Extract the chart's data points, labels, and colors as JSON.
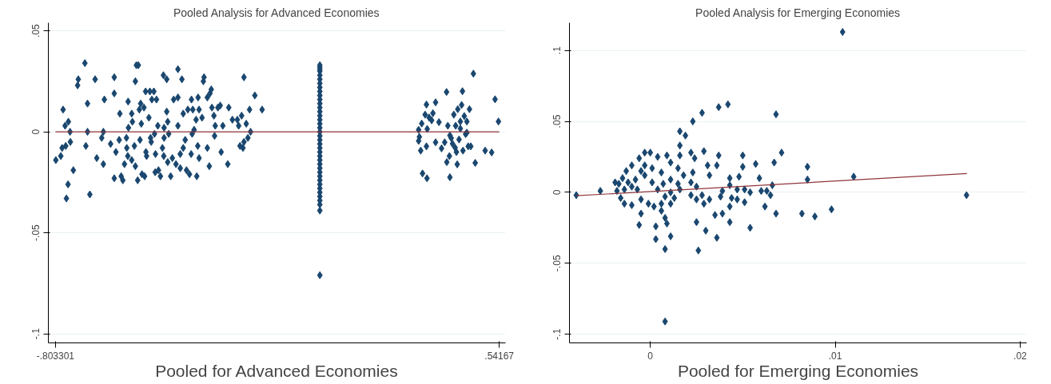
{
  "chart_data": [
    {
      "type": "scatter",
      "title": "Pooled Analysis for Advanced Economies",
      "xlabel": "Pooled for Advanced Economies",
      "xlim": [
        -0.8247,
        0.5606
      ],
      "ylim": [
        -0.1045,
        0.054
      ],
      "xticks": [
        {
          "value": -0.803301,
          "label": "-.803301"
        },
        {
          "value": 0.54167,
          "label": ".54167"
        }
      ],
      "yticks": [
        {
          "value": -0.1,
          "label": "-.1"
        },
        {
          "value": -0.05,
          "label": "-.05"
        },
        0,
        {
          "value": 0.05,
          "label": ".05"
        }
      ],
      "grid": "y",
      "series": [
        {
          "color": "#1a476f",
          "marker": "diamond",
          "x": [
            -0.802,
            -0.787,
            -0.78,
            -0.774,
            -0.764,
            -0.783,
            -0.772,
            -0.758,
            -0.759,
            -0.749,
            -0.765,
            -0.77,
            -0.736,
            -0.734,
            -0.714,
            -0.706,
            -0.706,
            -0.711,
            -0.699,
            -0.683,
            -0.678,
            -0.663,
            -0.658,
            -0.655,
            -0.658,
            -0.636,
            -0.625,
            -0.625,
            -0.625,
            -0.62,
            -0.61,
            -0.608,
            -0.604,
            -0.599,
            -0.594,
            -0.588,
            -0.587,
            -0.584,
            -0.583,
            -0.582,
            -0.572,
            -0.572,
            -0.57,
            -0.564,
            -0.561,
            -0.561,
            -0.558,
            -0.554,
            -0.552,
            -0.549,
            -0.547,
            -0.545,
            -0.543,
            -0.541,
            -0.535,
            -0.533,
            -0.53,
            -0.529,
            -0.527,
            -0.52,
            -0.517,
            -0.515,
            -0.513,
            -0.511,
            -0.505,
            -0.503,
            -0.501,
            -0.5,
            -0.497,
            -0.493,
            -0.491,
            -0.485,
            -0.479,
            -0.476,
            -0.474,
            -0.474,
            -0.475,
            -0.466,
            -0.466,
            -0.463,
            -0.463,
            -0.46,
            -0.454,
            -0.449,
            -0.445,
            -0.438,
            -0.432,
            -0.432,
            -0.432,
            -0.425,
            -0.425,
            -0.42,
            -0.416,
            -0.416,
            -0.41,
            -0.406,
            -0.402,
            -0.397,
            -0.392,
            -0.391,
            -0.389,
            -0.387,
            -0.383,
            -0.377,
            -0.375,
            -0.372,
            -0.371,
            -0.368,
            -0.368,
            -0.359,
            -0.355,
            -0.353,
            -0.343,
            -0.343,
            -0.337,
            -0.335,
            -0.331,
            -0.329,
            -0.323,
            -0.321,
            -0.319,
            -0.311,
            -0.304,
            -0.301,
            -0.296,
            -0.281,
            -0.278,
            -0.267,
            -0.252,
            -0.248,
            -0.244,
            -0.239,
            -0.235,
            -0.232,
            -0.232,
            -0.225,
            -0.22,
            -0.215,
            -0.212,
            -0.199,
            -0.177,
            -0.002,
            -0.002,
            -0.002,
            -0.002,
            -0.002,
            -0.002,
            -0.002,
            -0.002,
            -0.002,
            -0.002,
            -0.002,
            -0.002,
            -0.002,
            -0.002,
            -0.002,
            -0.002,
            -0.002,
            -0.002,
            -0.002,
            -0.002,
            -0.002,
            -0.002,
            -0.002,
            -0.002,
            -0.002,
            -0.002,
            -0.002,
            -0.002,
            -0.002,
            -0.002,
            -0.002,
            -0.002,
            -0.002,
            -0.002,
            -0.002,
            -0.002,
            -0.002,
            -0.002,
            -0.002,
            0.2973,
            0.2996,
            0.2973,
            0.3036,
            0.3067,
            0.3091,
            0.317,
            0.321,
            0.3226,
            0.3234,
            0.321,
            0.3289,
            0.3407,
            0.3487,
            0.3487,
            0.3589,
            0.3668,
            0.3763,
            0.3819,
            0.3827,
            0.3858,
            0.3906,
            0.3921,
            0.3961,
            0.404,
            0.408,
            0.4095,
            0.4143,
            0.4159,
            0.4198,
            0.4238,
            0.4277,
            0.4301,
            0.4317,
            0.4356,
            0.4396,
            0.4435,
            0.4475,
            0.4514,
            0.4554,
            0.4633,
            0.4688,
            0.4989,
            0.5186,
            0.5289,
            0.5392,
            0.4119,
            0.4238,
            0.4435,
            0.4,
            0.3921,
            0.3368
          ],
          "values": [
            -0.014,
            -0.012,
            0.011,
            0.003,
            0.005,
            -0.008,
            -0.007,
            -0.005,
            0.0,
            -0.019,
            -0.026,
            -0.033,
            0.023,
            0.026,
            0.034,
            0.014,
            0.0,
            -0.007,
            -0.031,
            0.026,
            -0.013,
            -0.003,
            0.0,
            0.016,
            -0.016,
            -0.006,
            0.027,
            0.019,
            -0.023,
            -0.01,
            -0.004,
            0.009,
            -0.022,
            -0.024,
            -0.016,
            -0.003,
            -0.008,
            -0.012,
            0.015,
            0.002,
            -0.014,
            0.009,
            0.005,
            -0.007,
            0.025,
            -0.017,
            0.033,
            -0.024,
            0.033,
            0.011,
            -0.004,
            0.014,
            0.004,
            -0.021,
            0.012,
            -0.022,
            0.02,
            -0.01,
            -0.012,
            0.007,
            0.02,
            -0.003,
            -0.005,
            0.016,
            0.02,
            -0.001,
            -0.02,
            -0.011,
            0.016,
            0.003,
            -0.019,
            -0.022,
            -0.008,
            0.028,
            0.002,
            -0.003,
            -0.012,
            0.026,
            0.01,
            0.005,
            -0.015,
            -0.001,
            -0.022,
            -0.013,
            0.016,
            -0.016,
            0.031,
            0.017,
            0.003,
            -0.018,
            -0.011,
            0.026,
            0.009,
            -0.008,
            -0.004,
            -0.019,
            0.011,
            -0.021,
            -0.011,
            0.016,
            -0.001,
            0.011,
            0.001,
            0.006,
            -0.022,
            -0.007,
            0.017,
            0.011,
            -0.013,
            0.007,
            0.025,
            0.027,
            0.017,
            -0.008,
            -0.017,
            0.019,
            0.021,
            0.012,
            0.008,
            -0.002,
            0.003,
            0.012,
            0.013,
            -0.01,
            0.003,
            -0.016,
            0.012,
            0.006,
            0.006,
            0.003,
            -0.007,
            0.008,
            -0.008,
            0.027,
            -0.005,
            0.004,
            -0.003,
            0.011,
            0.0,
            0.018,
            0.011,
            0.033,
            0.032,
            0.031,
            0.03,
            0.028,
            0.026,
            0.024,
            0.022,
            0.02,
            0.018,
            0.016,
            0.014,
            0.012,
            0.01,
            0.008,
            0.006,
            0.004,
            0.002,
            0.0,
            -0.002,
            -0.004,
            -0.006,
            -0.008,
            -0.01,
            -0.012,
            -0.014,
            -0.016,
            -0.018,
            -0.02,
            -0.022,
            -0.024,
            -0.026,
            -0.028,
            -0.03,
            -0.032,
            -0.034,
            -0.036,
            -0.039,
            -0.071,
            0.001,
            -0.0025,
            -0.0045,
            -0.0093,
            0.0041,
            -0.0206,
            0.0085,
            0.0135,
            -0.023,
            0.0014,
            -0.0072,
            0.0071,
            0.0092,
            0.0146,
            -0.0052,
            0.0048,
            -0.0082,
            -0.0052,
            0.0197,
            -0.015,
            0.003,
            -0.012,
            -0.0225,
            -0.0031,
            0.0085,
            -0.0079,
            0.003,
            -0.0161,
            0.0112,
            -0.0038,
            0.0016,
            0.0133,
            0.0201,
            -0.0093,
            0.0078,
            -0.0011,
            0.0051,
            -0.0072,
            0.0112,
            -0.0072,
            0.0288,
            -0.0154,
            -0.0093,
            -0.0102,
            0.0161,
            0.0051,
            -0.01,
            0.0051,
            -0.0004,
            -0.0059,
            -0.0018,
            0.0057
          ]
        },
        {
          "type": "line",
          "color": "#90353b",
          "x": [
            -0.803301,
            0.54167
          ],
          "values": [
            0,
            0
          ]
        }
      ]
    },
    {
      "type": "scatter",
      "title": "Pooled Analysis for Emerging Economies",
      "xlabel": "Pooled for Emerging Economies",
      "xlim": [
        -0.00437,
        0.02035
      ],
      "ylim": [
        -0.1061,
        0.1195
      ],
      "xticks": [
        0,
        {
          "value": 0.01,
          "label": ".01"
        },
        {
          "value": 0.02,
          "label": ".02"
        }
      ],
      "yticks": [
        {
          "value": -0.1,
          "label": "-.1"
        },
        {
          "value": -0.05,
          "label": "-.05"
        },
        0,
        {
          "value": 0.05,
          "label": ".05"
        },
        {
          "value": 0.1,
          "label": ".1"
        }
      ],
      "grid": "y",
      "series": [
        {
          "color": "#1a476f",
          "marker": "diamond",
          "x": [
            -0.004,
            -0.0027,
            0.0104,
            0.0171,
            0.0008,
            0.011,
            0.0098,
            0.0089,
            0.0082,
            0.0068,
            0.0085,
            0.0085,
            0.0071,
            0.0068,
            0.0067,
            0.0066,
            0.0065,
            0.0063,
            0.006,
            0.0062,
            0.0059,
            0.0057,
            0.0054,
            0.0054,
            0.0051,
            0.0051,
            0.005,
            0.005,
            0.0048,
            0.0047,
            0.0044,
            0.0043,
            0.0043,
            0.0043,
            0.0039,
            0.0037,
            0.0037,
            0.0042,
            0.0036,
            0.0036,
            0.0035,
            0.0032,
            0.0031,
            0.003,
            0.0029,
            0.0028,
            0.0026,
            0.0025,
            0.0024,
            0.0023,
            0.0023,
            0.0022,
            0.0019,
            0.0016,
            0.0016,
            0.0016,
            0.0011,
            0.0008,
            0.0003,
            0.0009,
            0.0008,
            0.0011,
            -0.0006,
            -0.0005,
            -0.001,
            -0.0014,
            -0.0016,
            -0.0018,
            -0.0015,
            -0.0013,
            -0.001,
            -0.0006,
            -0.0003,
            0.0,
            0.0004,
            0.0009,
            0.0011,
            0.0015,
            0.0018,
            0.0022,
            0.0025,
            0.0028,
            -0.0003,
            0.0001,
            0.0004,
            0.0008,
            -0.0007,
            -0.001,
            -0.0012,
            -0.0005,
            -0.0001,
            0.0002,
            0.0006,
            0.0011,
            0.0016,
            0.0022,
            0.0029,
            0.0032,
            0.0038,
            0.0001,
            0.0006,
            0.0011,
            0.0015,
            -0.0008,
            -0.0003,
            -0.0014,
            -0.0017,
            0.0003,
            0.0006,
            0.0013,
            0.0025,
            0.0039,
            0.0043,
            0.0047,
            -0.0019,
            -0.0005,
            0.0007
          ],
          "values": [
            -0.002,
            0.001,
            0.113,
            -0.002,
            -0.091,
            0.011,
            -0.012,
            -0.017,
            -0.015,
            -0.015,
            0.018,
            0.009,
            0.028,
            0.055,
            0.021,
            0.005,
            -0.002,
            0.001,
            0.001,
            -0.01,
            0.01,
            0.02,
            0.0,
            -0.025,
            0.002,
            -0.007,
            0.026,
            0.018,
            0.011,
            0.002,
            -0.004,
            0.01,
            -0.01,
            -0.021,
            -0.015,
            0.026,
            0.06,
            0.062,
            0.019,
            -0.032,
            -0.016,
            0.012,
            0.019,
            -0.027,
            0.029,
            0.056,
            -0.041,
            -0.021,
            0.024,
            0.05,
            0.014,
            0.028,
            0.04,
            0.043,
            0.033,
            0.026,
            -0.031,
            -0.04,
            -0.033,
            -0.022,
            -0.018,
            -0.008,
            -0.023,
            -0.015,
            -0.009,
            -0.008,
            -0.004,
            0.001,
            0.01,
            0.015,
            0.019,
            0.024,
            0.028,
            0.028,
            0.025,
            0.026,
            0.021,
            0.017,
            0.012,
            0.007,
            0.004,
            -0.002,
            0.012,
            0.007,
            0.002,
            -0.003,
            0.002,
            0.004,
            0.007,
            -0.005,
            -0.008,
            -0.01,
            -0.013,
            0.0,
            0.002,
            -0.002,
            -0.008,
            -0.005,
            -0.003,
            0.017,
            0.014,
            0.009,
            0.006,
            0.009,
            0.019,
            0.002,
            0.006,
            -0.024,
            -0.008,
            -0.004,
            -0.005,
            0.001,
            0.005,
            -0.005,
            0.007,
            0.015,
            0.006
          ]
        },
        {
          "type": "line",
          "color": "#90353b",
          "x": [
            -0.00401,
            0.01712
          ],
          "values": [
            -0.0024,
            0.0132
          ]
        }
      ]
    }
  ]
}
